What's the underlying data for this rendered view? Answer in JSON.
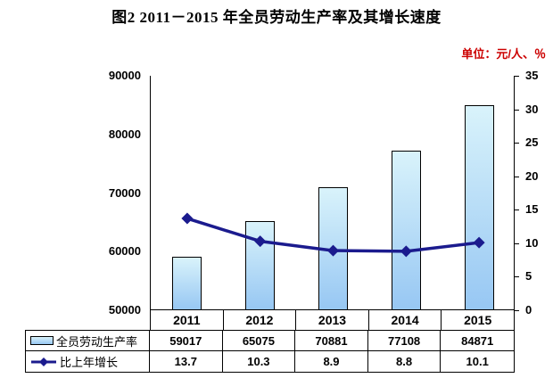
{
  "title": "图2  2011－2015 年全员劳动生产率及其增长速度",
  "unit_label": "单位：元/人、％",
  "colors": {
    "title_text": "#000000",
    "unit_text": "#cc0000",
    "bar_gradient_top": "#d9f3fb",
    "bar_gradient_bottom": "#97c7f3",
    "bar_border": "#000000",
    "line_color": "#1b1b8e",
    "axis_color": "#000000",
    "table_border": "#000000"
  },
  "chart_data": {
    "type": "combo",
    "categories": [
      "2011",
      "2012",
      "2013",
      "2014",
      "2015"
    ],
    "series": [
      {
        "name": "全员劳动生产率",
        "type": "bar",
        "axis": "left",
        "values": [
          59017,
          65075,
          70881,
          77108,
          84871
        ]
      },
      {
        "name": "比上年增长",
        "type": "line",
        "axis": "right",
        "values": [
          13.7,
          10.3,
          8.9,
          8.8,
          10.1
        ]
      }
    ],
    "title": "图2  2011－2015 年全员劳动生产率及其增长速度",
    "xlabel": "",
    "ylabel_left": "元/人",
    "ylabel_right": "%",
    "left_axis": {
      "min": 50000,
      "max": 90000,
      "step": 10000,
      "ticks": [
        "90000",
        "80000",
        "70000",
        "60000",
        "50000"
      ]
    },
    "right_axis": {
      "min": 0,
      "max": 35,
      "step": 5,
      "ticks": [
        "35",
        "30",
        "25",
        "20",
        "15",
        "10",
        "5",
        "0"
      ]
    },
    "grid": false,
    "legend_position": "bottom-table-left"
  },
  "table": {
    "header_row": [
      "2011",
      "2012",
      "2013",
      "2014",
      "2015"
    ],
    "rows": [
      {
        "label": "全员劳动生产率",
        "values": [
          "59017",
          "65075",
          "70881",
          "77108",
          "84871"
        ]
      },
      {
        "label": "比上年增长",
        "values": [
          "13.7",
          "10.3",
          "8.9",
          "8.8",
          "10.1"
        ]
      }
    ]
  }
}
